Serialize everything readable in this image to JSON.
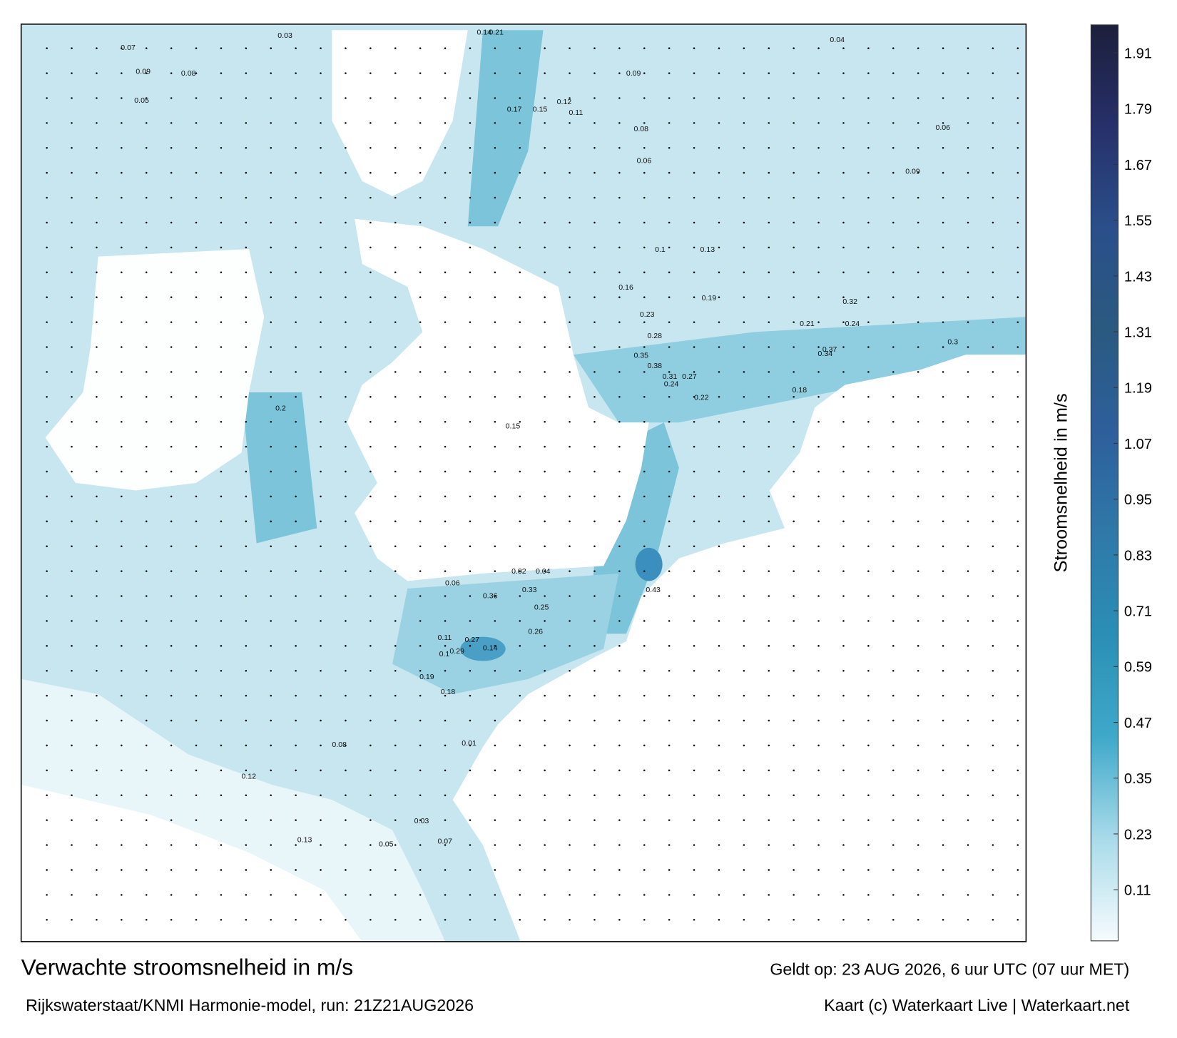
{
  "map": {
    "title": "Verwachte stroomsnelheid in m/s",
    "source": "Rijkswaterstaat/KNMI Harmonie-model, run: 21Z21AUG2026",
    "valid_time": "Geldt op: 23 AUG 2026, 6 uur UTC (07 uur MET)",
    "credit": "Kaart (c) Waterkaart Live | Waterkaart.net",
    "colorbar": {
      "label": "Stroomsnelheid in m/s",
      "lim": [
        0,
        1.97
      ],
      "ticks": [
        0.11,
        0.23,
        0.35,
        0.47,
        0.59,
        0.71,
        0.83,
        0.95,
        1.07,
        1.19,
        1.31,
        1.43,
        1.55,
        1.67,
        1.79,
        1.91
      ],
      "colors": [
        "#f6fbfd",
        "#a9dbea",
        "#3fa9c9",
        "#2b8fb5",
        "#2f79a8",
        "#2e5f9c",
        "#2a5a80",
        "#2a4f8a",
        "#27306a",
        "#1c1f3c"
      ]
    },
    "speed_labels": [
      0.07,
      0.09,
      0.05,
      0.08,
      0.03,
      0.14,
      0.21,
      0.17,
      0.15,
      0.12,
      0.11,
      0.09,
      0.08,
      0.06,
      0.1,
      0.13,
      0.16,
      0.23,
      0.28,
      0.35,
      0.38,
      0.31,
      0.27,
      0.43,
      0.24,
      0.22,
      0.19,
      0.18,
      0.21,
      0.24,
      0.3,
      0.34,
      0.37,
      0.33,
      0.25,
      0.26,
      0.29,
      0.19,
      0.18,
      0.14,
      0.06,
      0.04,
      0.02,
      0.01,
      0.13,
      0.12,
      0.08,
      0.07,
      0.05,
      0.03,
      0.2,
      0.32,
      0.36,
      0.27,
      0.15,
      0.11,
      0.1,
      0.09,
      0.06,
      0.04
    ]
  }
}
